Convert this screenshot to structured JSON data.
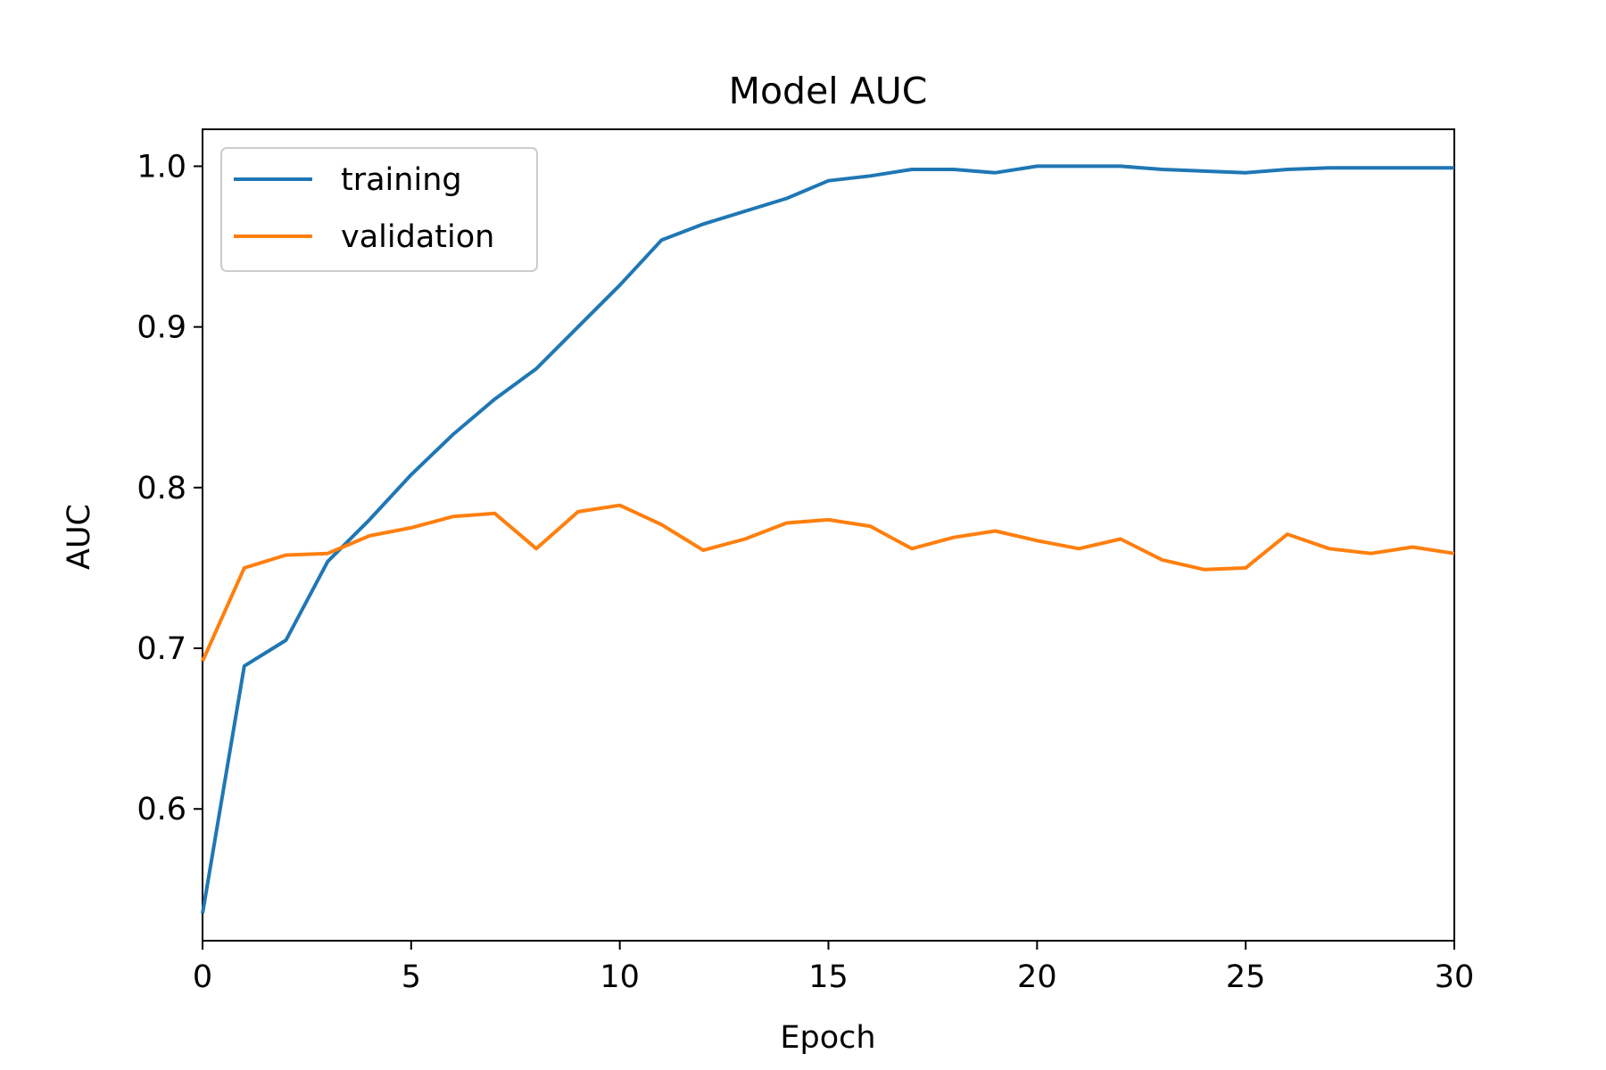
{
  "chart_data": {
    "type": "line",
    "title": "Model AUC",
    "xlabel": "Epoch",
    "ylabel": "AUC",
    "xlim": [
      0,
      30
    ],
    "ylim": [
      0.518,
      1.023
    ],
    "xticks": [
      0,
      5,
      10,
      15,
      20,
      25,
      30
    ],
    "yticks": [
      0.6,
      0.7,
      0.8,
      0.9,
      1.0
    ],
    "ytick_labels": [
      "0.6",
      "0.7",
      "0.8",
      "0.9",
      "1.0"
    ],
    "grid": false,
    "legend_position": "top-left",
    "x": [
      0,
      1,
      2,
      3,
      4,
      5,
      6,
      7,
      8,
      9,
      10,
      11,
      12,
      13,
      14,
      15,
      16,
      17,
      18,
      19,
      20,
      21,
      22,
      23,
      24,
      25,
      26,
      27,
      28,
      29,
      30
    ],
    "series": [
      {
        "name": "training",
        "color": "#1f77b4",
        "values": [
          0.535,
          0.689,
          0.705,
          0.754,
          0.78,
          0.808,
          0.833,
          0.855,
          0.874,
          0.9,
          0.926,
          0.954,
          0.964,
          0.972,
          0.98,
          0.991,
          0.994,
          0.998,
          0.998,
          0.996,
          1.0,
          1.0,
          1.0,
          0.998,
          0.997,
          0.996,
          0.998,
          0.999,
          0.999,
          0.999,
          0.999
        ]
      },
      {
        "name": "validation",
        "color": "#ff7f0e",
        "values": [
          0.692,
          0.75,
          0.758,
          0.759,
          0.77,
          0.775,
          0.782,
          0.784,
          0.762,
          0.785,
          0.789,
          0.777,
          0.761,
          0.768,
          0.778,
          0.78,
          0.776,
          0.762,
          0.769,
          0.773,
          0.767,
          0.762,
          0.768,
          0.755,
          0.749,
          0.75,
          0.771,
          0.762,
          0.759,
          0.763,
          0.759
        ]
      }
    ]
  }
}
